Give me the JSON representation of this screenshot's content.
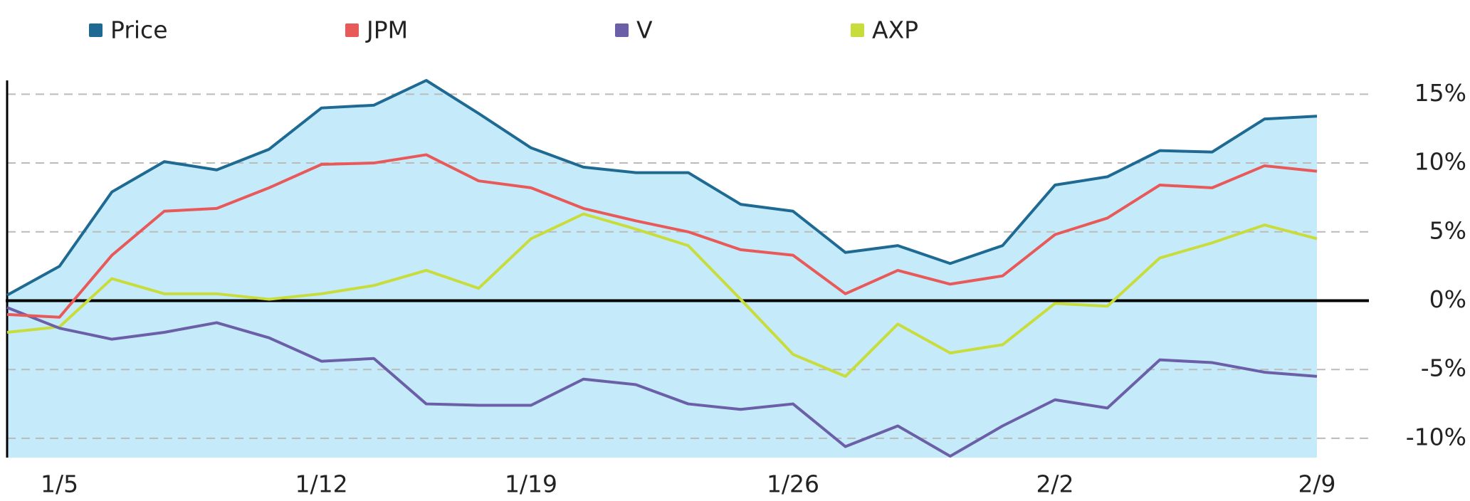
{
  "chart_data": {
    "type": "line",
    "categories": [
      null,
      "1/5",
      null,
      null,
      null,
      null,
      "1/12",
      null,
      null,
      null,
      "1/19",
      null,
      null,
      null,
      null,
      "1/26",
      null,
      null,
      null,
      null,
      "2/2",
      null,
      null,
      null,
      null,
      "2/9"
    ],
    "series": [
      {
        "name": "Price",
        "color": "#1f6a93",
        "area_color": "#c5ebfa",
        "values": [
          0.4,
          2.5,
          7.9,
          10.1,
          9.5,
          11.0,
          14.0,
          14.2,
          16.0,
          13.6,
          11.1,
          9.7,
          9.3,
          9.3,
          7.0,
          6.5,
          3.5,
          4.0,
          2.7,
          4.0,
          8.4,
          9.0,
          10.9,
          10.8,
          13.2,
          13.4
        ]
      },
      {
        "name": "JPM",
        "color": "#e85a5a",
        "values": [
          -1.0,
          -1.2,
          3.3,
          6.5,
          6.7,
          8.2,
          9.9,
          10.0,
          10.6,
          8.7,
          8.2,
          6.7,
          5.8,
          5.0,
          3.7,
          3.3,
          0.5,
          2.2,
          1.2,
          1.8,
          4.8,
          6.0,
          8.4,
          8.2,
          9.8,
          9.4
        ]
      },
      {
        "name": "V",
        "color": "#6b5fa8",
        "values": [
          -0.5,
          -2.0,
          -2.8,
          -2.3,
          -1.6,
          -2.7,
          -4.4,
          -4.2,
          -7.5,
          -7.6,
          -7.6,
          -5.7,
          -6.1,
          -7.5,
          -7.9,
          -7.5,
          -10.6,
          -9.1,
          -11.3,
          -9.1,
          -7.2,
          -7.8,
          -4.3,
          -4.5,
          -5.2,
          -5.5
        ]
      },
      {
        "name": "AXP",
        "color": "#c8dc3c",
        "values": [
          -2.3,
          -1.9,
          1.6,
          0.5,
          0.5,
          0.1,
          0.5,
          1.1,
          2.2,
          0.9,
          4.5,
          6.3,
          5.2,
          4.0,
          0.1,
          -3.9,
          -5.5,
          -1.7,
          -3.8,
          -3.2,
          -0.2,
          -0.4,
          3.1,
          4.2,
          5.5,
          4.5
        ]
      }
    ],
    "ylim": [
      -11.4,
      16.0
    ],
    "yticks": [
      {
        "value": -10,
        "label": "-10%"
      },
      {
        "value": -5,
        "label": "-5%"
      },
      {
        "value": 0,
        "label": "0%"
      },
      {
        "value": 5,
        "label": "5%"
      },
      {
        "value": 10,
        "label": "10%"
      },
      {
        "value": 15,
        "label": "15%"
      }
    ],
    "grid": true,
    "legend": "top"
  }
}
